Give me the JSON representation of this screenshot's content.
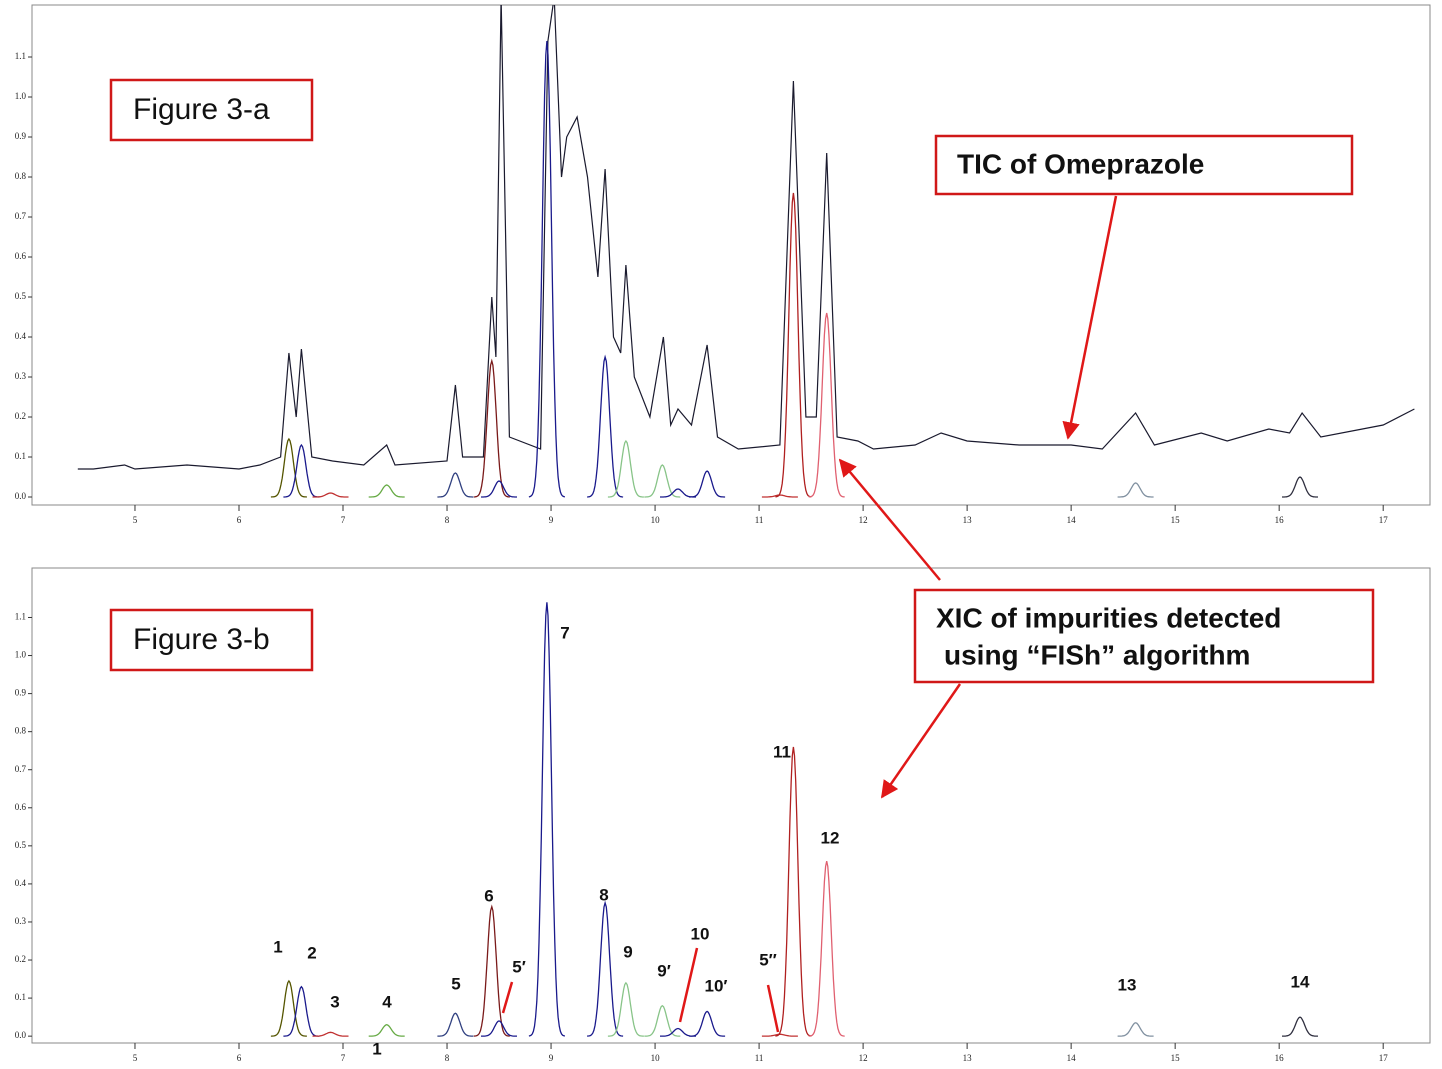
{
  "chart_data": [
    {
      "type": "line",
      "annotations": [
        "Figure 3-a",
        "TIC of Omeprazole"
      ],
      "xlim": [
        4.01,
        17.45
      ],
      "ylim": [
        -0.02,
        1.23
      ],
      "xticks": [
        5,
        6,
        7,
        8,
        9,
        10,
        11,
        12,
        13,
        14,
        15,
        16,
        17
      ],
      "yticks": [
        {
          "value": 0,
          "label": "0.0"
        },
        0.1,
        0.2,
        0.3,
        0.4,
        0.5,
        0.6,
        0.7,
        0.8,
        0.9,
        {
          "value": 1,
          "label": "1.0"
        },
        1.1
      ],
      "series": [
        {
          "color": "#1a1a2e",
          "x": [
            4.45,
            4.6,
            4.9,
            5.0,
            5.5,
            6.0,
            6.2,
            6.4,
            6.48,
            6.55,
            6.6,
            6.7,
            6.9,
            7.2,
            7.42,
            7.5,
            8.0,
            8.08,
            8.15,
            8.35,
            8.43,
            8.47,
            8.52,
            8.6,
            8.9,
            8.97,
            9.03,
            9.1,
            9.15,
            9.25,
            9.35,
            9.45,
            9.52,
            9.6,
            9.67,
            9.72,
            9.8,
            9.95,
            10.08,
            10.15,
            10.22,
            10.35,
            10.5,
            10.6,
            10.8,
            11.2,
            11.33,
            11.45,
            11.55,
            11.65,
            11.75,
            11.95,
            12.1,
            12.5,
            12.75,
            13.0,
            13.5,
            14.0,
            14.3,
            14.62,
            14.8,
            15.25,
            15.5,
            15.9,
            16.1,
            16.22,
            16.4,
            16.8,
            17.0,
            17.3
          ],
          "values": [
            0.07,
            0.07,
            0.08,
            0.07,
            0.08,
            0.07,
            0.08,
            0.1,
            0.36,
            0.2,
            0.37,
            0.1,
            0.09,
            0.08,
            0.13,
            0.08,
            0.09,
            0.28,
            0.1,
            0.1,
            0.5,
            0.35,
            1.25,
            0.15,
            0.12,
            1.14,
            1.25,
            0.8,
            0.9,
            0.95,
            0.8,
            0.55,
            0.82,
            0.4,
            0.36,
            0.58,
            0.3,
            0.2,
            0.4,
            0.18,
            0.22,
            0.18,
            0.38,
            0.15,
            0.12,
            0.13,
            1.04,
            0.2,
            0.2,
            0.86,
            0.15,
            0.14,
            0.12,
            0.13,
            0.16,
            0.14,
            0.13,
            0.13,
            0.12,
            0.21,
            0.13,
            0.16,
            0.14,
            0.17,
            0.16,
            0.21,
            0.15,
            0.17,
            0.18,
            0.22
          ]
        }
      ],
      "peaks": {
        "x": [
          6.48,
          6.6,
          6.88,
          7.42,
          8.08,
          8.43,
          8.5,
          8.96,
          9.52,
          9.72,
          10.07,
          10.22,
          10.5,
          11.2,
          11.33,
          11.65,
          14.62,
          16.2
        ],
        "values": [
          0.145,
          0.13,
          0.01,
          0.03,
          0.06,
          0.34,
          0.04,
          1.14,
          0.35,
          0.14,
          0.08,
          0.02,
          0.065,
          0.005,
          0.76,
          0.46,
          0.035,
          0.05
        ],
        "colors": [
          "#555500",
          "#1a1a8c",
          "#c03030",
          "#66aa44",
          "#304080",
          "#7a1a1a",
          "#1a1a8c",
          "#1a1a8c",
          "#1a1a8c",
          "#88c488",
          "#88c488",
          "#1a1a8c",
          "#1a1a8c",
          "#c03030",
          "#b02020",
          "#e06070",
          "#8090a0",
          "#303040"
        ]
      }
    },
    {
      "type": "line",
      "annotations": [
        "Figure 3-b",
        "XIC of impurities detected",
        "using “FISh” algorithm",
        "1"
      ],
      "xlim": [
        4.01,
        17.45
      ],
      "ylim": [
        -0.018,
        1.23
      ],
      "xticks": [
        5,
        6,
        7,
        8,
        9,
        10,
        11,
        12,
        13,
        14,
        15,
        16,
        17
      ],
      "yticks": [
        {
          "value": 0,
          "label": "0.0"
        },
        0.1,
        0.2,
        0.3,
        0.4,
        0.5,
        0.6,
        0.7,
        0.8,
        0.9,
        {
          "value": 1,
          "label": "1.0"
        },
        1.1
      ],
      "peaks": {
        "labels": [
          "1",
          "2",
          "3",
          "4",
          "5",
          "6",
          "5′",
          "7",
          "8",
          "9",
          "9′",
          "10",
          "10′",
          "5″",
          "11",
          "12",
          "13",
          "14"
        ],
        "x": [
          6.48,
          6.6,
          6.88,
          7.42,
          8.08,
          8.43,
          8.5,
          8.96,
          9.52,
          9.72,
          10.07,
          10.22,
          10.5,
          11.2,
          11.33,
          11.65,
          14.62,
          16.2
        ],
        "values": [
          0.145,
          0.13,
          0.01,
          0.03,
          0.06,
          0.34,
          0.04,
          1.14,
          0.35,
          0.14,
          0.08,
          0.02,
          0.065,
          0.005,
          0.76,
          0.46,
          0.035,
          0.05
        ],
        "colors": [
          "#555500",
          "#1a1a8c",
          "#c03030",
          "#66aa44",
          "#304080",
          "#7a1a1a",
          "#1a1a8c",
          "#1a1a8c",
          "#1a1a8c",
          "#88c488",
          "#88c488",
          "#1a1a8c",
          "#1a1a8c",
          "#c03030",
          "#b02020",
          "#e06070",
          "#8090a0",
          "#303040"
        ]
      }
    }
  ]
}
